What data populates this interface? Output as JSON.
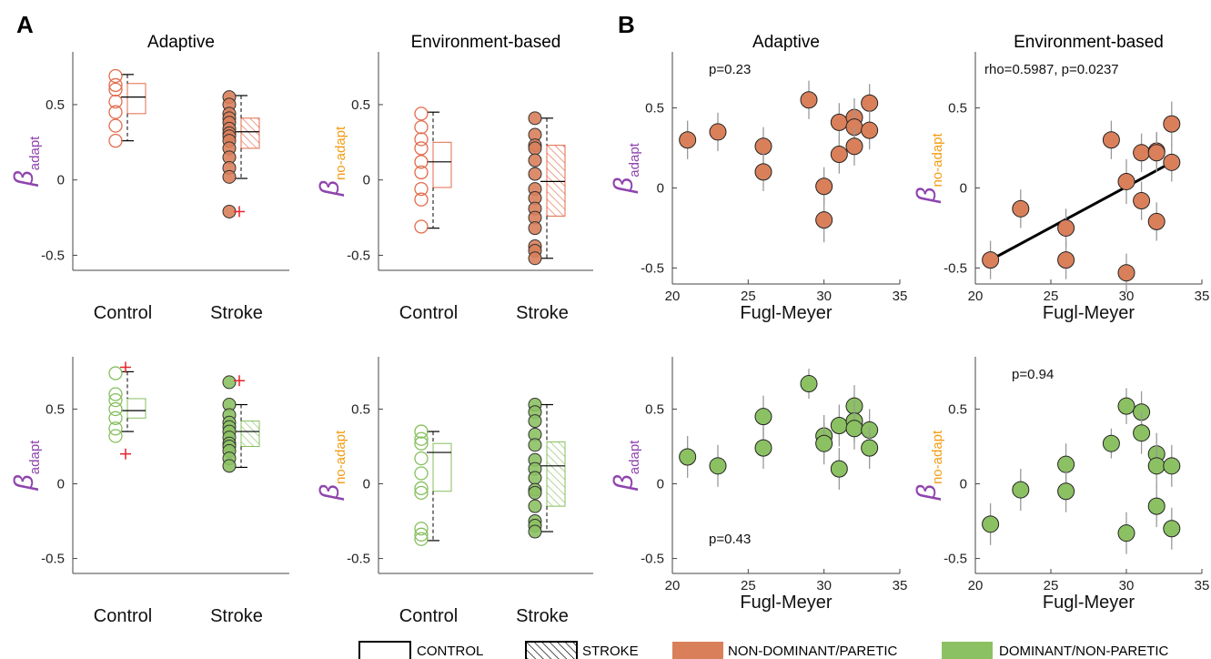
{
  "panel_letters": [
    "A",
    "B"
  ],
  "axis_labels": {
    "control": "Control",
    "stroke": "Stroke",
    "fugl_meyer": "Fugl-Meyer",
    "beta": "β",
    "adapt_sub": "adapt",
    "noadapt_sub": "no-adapt"
  },
  "colors": {
    "paretic_fill": "#D9805B",
    "paretic_stroke": "#E36B4B",
    "nonparetic_fill": "#8CC163",
    "nonparetic_stroke": "#86BF5E",
    "outlier": "#E8232A",
    "purple": "#8E44AD",
    "orange": "#F39C12"
  },
  "legend": [
    {
      "label": "CONTROL",
      "kind": "box"
    },
    {
      "label": "STROKE",
      "kind": "hatch"
    },
    {
      "label": "NON-DOMINANT/PARETIC",
      "kind": "swatch",
      "color": "#D9805B"
    },
    {
      "label": "DOMINANT/NON-PARETIC",
      "kind": "swatch",
      "color": "#8CC163"
    }
  ],
  "chart_data": [
    {
      "type": "box",
      "title": "Adaptive",
      "ylabel_sub": "adapt",
      "color": "paretic",
      "ylim": [
        -0.6,
        0.85
      ],
      "yticks": [
        -0.5,
        0,
        0.5
      ],
      "ytick_labels": [
        "-0.5",
        "0",
        "0.5"
      ],
      "categories": [
        "Control",
        "Stroke"
      ],
      "groups": [
        {
          "name": "Control",
          "points": [
            0.69,
            0.63,
            0.6,
            0.52,
            0.45,
            0.36,
            0.26
          ],
          "median": 0.55,
          "q1": 0.44,
          "q3": 0.64,
          "whisker_low": 0.26,
          "whisker_high": 0.7,
          "outliers": []
        },
        {
          "name": "Stroke",
          "points": [
            0.55,
            0.5,
            0.44,
            0.41,
            0.38,
            0.34,
            0.31,
            0.29,
            0.26,
            0.21,
            0.15,
            0.08,
            0.02,
            -0.21
          ],
          "median": 0.32,
          "q1": 0.21,
          "q3": 0.41,
          "whisker_low": 0.01,
          "whisker_high": 0.56,
          "outliers": [
            -0.21
          ]
        }
      ]
    },
    {
      "type": "box",
      "title": "Environment-based",
      "ylabel_sub": "no-adapt",
      "color": "paretic",
      "ylim": [
        -0.6,
        0.85
      ],
      "yticks": [
        -0.5,
        0,
        0.5
      ],
      "ytick_labels": [
        "-0.5",
        "0",
        "0.5"
      ],
      "categories": [
        "Control",
        "Stroke"
      ],
      "groups": [
        {
          "name": "Control",
          "points": [
            0.44,
            0.35,
            0.27,
            0.21,
            0.12,
            0.05,
            -0.06,
            -0.13,
            -0.31
          ],
          "median": 0.12,
          "q1": -0.05,
          "q3": 0.25,
          "whisker_low": -0.32,
          "whisker_high": 0.45,
          "outliers": []
        },
        {
          "name": "Stroke",
          "points": [
            0.41,
            0.3,
            0.23,
            0.21,
            0.13,
            0.04,
            -0.06,
            -0.12,
            -0.19,
            -0.25,
            -0.32,
            -0.44,
            -0.47,
            -0.52
          ],
          "median": -0.01,
          "q1": -0.24,
          "q3": 0.23,
          "whisker_low": -0.52,
          "whisker_high": 0.41,
          "outliers": []
        }
      ]
    },
    {
      "type": "box",
      "title": "",
      "ylabel_sub": "adapt",
      "color": "nonparetic",
      "ylim": [
        -0.6,
        0.85
      ],
      "yticks": [
        -0.5,
        0,
        0.5
      ],
      "ytick_labels": [
        "-0.5",
        "0",
        "0.5"
      ],
      "categories": [
        "Control",
        "Stroke"
      ],
      "groups": [
        {
          "name": "Control",
          "points": [
            0.74,
            0.6,
            0.56,
            0.5,
            0.44,
            0.37,
            0.32
          ],
          "median": 0.49,
          "q1": 0.44,
          "q3": 0.57,
          "whisker_low": 0.35,
          "whisker_high": 0.75,
          "outliers": [
            0.78,
            0.2
          ]
        },
        {
          "name": "Stroke",
          "points": [
            0.68,
            0.53,
            0.46,
            0.41,
            0.38,
            0.35,
            0.31,
            0.27,
            0.25,
            0.22,
            0.17,
            0.12
          ],
          "median": 0.35,
          "q1": 0.25,
          "q3": 0.42,
          "whisker_low": 0.11,
          "whisker_high": 0.53,
          "outliers": [
            0.69
          ]
        }
      ]
    },
    {
      "type": "box",
      "title": "",
      "ylabel_sub": "no-adapt",
      "color": "nonparetic",
      "ylim": [
        -0.6,
        0.85
      ],
      "yticks": [
        -0.5,
        0,
        0.5
      ],
      "ytick_labels": [
        "-0.5",
        "0",
        "0.5"
      ],
      "categories": [
        "Control",
        "Stroke"
      ],
      "groups": [
        {
          "name": "Control",
          "points": [
            0.35,
            0.3,
            0.27,
            0.17,
            0.07,
            -0.03,
            -0.06,
            -0.3,
            -0.34,
            -0.37
          ],
          "median": 0.21,
          "q1": -0.05,
          "q3": 0.27,
          "whisker_low": -0.38,
          "whisker_high": 0.35,
          "outliers": []
        },
        {
          "name": "Stroke",
          "points": [
            0.53,
            0.48,
            0.42,
            0.33,
            0.26,
            0.16,
            0.1,
            0.04,
            -0.04,
            -0.06,
            -0.15,
            -0.25,
            -0.28,
            -0.32
          ],
          "median": 0.12,
          "q1": -0.15,
          "q3": 0.28,
          "whisker_low": -0.32,
          "whisker_high": 0.53,
          "outliers": []
        }
      ]
    },
    {
      "type": "scatter",
      "title": "Adaptive",
      "xlabel": "Fugl-Meyer",
      "ylabel_sub": "adapt",
      "color": "paretic",
      "annotation": "p=0.23",
      "xlim": [
        20,
        35
      ],
      "ylim": [
        -0.6,
        0.85
      ],
      "xticks": [
        20,
        25,
        30,
        35
      ],
      "yticks": [
        -0.5,
        0,
        0.5
      ],
      "ytick_labels": [
        "-0.5",
        "0",
        "0.5"
      ],
      "points": [
        {
          "x": 21,
          "y": 0.3,
          "err": 0.12
        },
        {
          "x": 23,
          "y": 0.35,
          "err": 0.12
        },
        {
          "x": 26,
          "y": 0.26,
          "err": 0.12
        },
        {
          "x": 26,
          "y": 0.1,
          "err": 0.12
        },
        {
          "x": 29,
          "y": 0.55,
          "err": 0.12
        },
        {
          "x": 30,
          "y": 0.01,
          "err": 0.12
        },
        {
          "x": 30,
          "y": -0.2,
          "err": 0.14
        },
        {
          "x": 31,
          "y": 0.41,
          "err": 0.12
        },
        {
          "x": 31,
          "y": 0.21,
          "err": 0.12
        },
        {
          "x": 32,
          "y": 0.44,
          "err": 0.12
        },
        {
          "x": 32,
          "y": 0.38,
          "err": 0.12
        },
        {
          "x": 32,
          "y": 0.26,
          "err": 0.12
        },
        {
          "x": 33,
          "y": 0.53,
          "err": 0.12
        },
        {
          "x": 33,
          "y": 0.36,
          "err": 0.12
        }
      ]
    },
    {
      "type": "scatter",
      "title": "Environment-based",
      "xlabel": "Fugl-Meyer",
      "ylabel_sub": "no-adapt",
      "color": "paretic",
      "annotation": "rho=0.5987, p=0.0237",
      "xlim": [
        20,
        35
      ],
      "ylim": [
        -0.6,
        0.85
      ],
      "xticks": [
        20,
        25,
        30,
        35
      ],
      "yticks": [
        -0.5,
        0,
        0.5
      ],
      "ytick_labels": [
        "-0.5",
        "0",
        "0.5"
      ],
      "fit": {
        "x1": 21,
        "y1": -0.45,
        "x2": 33,
        "y2": 0.16
      },
      "points": [
        {
          "x": 21,
          "y": -0.45,
          "err": 0.12
        },
        {
          "x": 23,
          "y": -0.13,
          "err": 0.12
        },
        {
          "x": 26,
          "y": -0.25,
          "err": 0.12
        },
        {
          "x": 26,
          "y": -0.45,
          "err": 0.12
        },
        {
          "x": 29,
          "y": 0.3,
          "err": 0.12
        },
        {
          "x": 30,
          "y": 0.04,
          "err": 0.14
        },
        {
          "x": 30,
          "y": -0.53,
          "err": 0.12
        },
        {
          "x": 31,
          "y": 0.22,
          "err": 0.12
        },
        {
          "x": 31,
          "y": -0.08,
          "err": 0.12
        },
        {
          "x": 32,
          "y": 0.23,
          "err": 0.12
        },
        {
          "x": 32,
          "y": 0.22,
          "err": 0.12
        },
        {
          "x": 32,
          "y": -0.21,
          "err": 0.12
        },
        {
          "x": 33,
          "y": 0.4,
          "err": 0.14
        },
        {
          "x": 33,
          "y": 0.16,
          "err": 0.12
        }
      ]
    },
    {
      "type": "scatter",
      "title": "",
      "xlabel": "Fugl-Meyer",
      "ylabel_sub": "adapt",
      "color": "nonparetic",
      "annotation": "p=0.43",
      "xlim": [
        20,
        35
      ],
      "ylim": [
        -0.6,
        0.85
      ],
      "xticks": [
        20,
        25,
        30,
        35
      ],
      "yticks": [
        -0.5,
        0,
        0.5
      ],
      "ytick_labels": [
        "-0.5",
        "0",
        "0.5"
      ],
      "points": [
        {
          "x": 21,
          "y": 0.18,
          "err": 0.14
        },
        {
          "x": 23,
          "y": 0.12,
          "err": 0.14
        },
        {
          "x": 26,
          "y": 0.45,
          "err": 0.14
        },
        {
          "x": 26,
          "y": 0.24,
          "err": 0.14
        },
        {
          "x": 29,
          "y": 0.67,
          "err": 0.1
        },
        {
          "x": 30,
          "y": 0.32,
          "err": 0.14
        },
        {
          "x": 30,
          "y": 0.27,
          "err": 0.14
        },
        {
          "x": 31,
          "y": 0.39,
          "err": 0.14
        },
        {
          "x": 31,
          "y": 0.1,
          "err": 0.14
        },
        {
          "x": 32,
          "y": 0.52,
          "err": 0.14
        },
        {
          "x": 32,
          "y": 0.42,
          "err": 0.14
        },
        {
          "x": 32,
          "y": 0.37,
          "err": 0.14
        },
        {
          "x": 33,
          "y": 0.36,
          "err": 0.14
        },
        {
          "x": 33,
          "y": 0.24,
          "err": 0.14
        }
      ]
    },
    {
      "type": "scatter",
      "title": "",
      "xlabel": "Fugl-Meyer",
      "ylabel_sub": "no-adapt",
      "color": "nonparetic",
      "annotation": "p=0.94",
      "xlim": [
        20,
        35
      ],
      "ylim": [
        -0.6,
        0.85
      ],
      "xticks": [
        20,
        25,
        30,
        35
      ],
      "yticks": [
        -0.5,
        0,
        0.5
      ],
      "ytick_labels": [
        "-0.5",
        "0",
        "0.5"
      ],
      "points": [
        {
          "x": 21,
          "y": -0.27,
          "err": 0.14
        },
        {
          "x": 23,
          "y": -0.04,
          "err": 0.14
        },
        {
          "x": 26,
          "y": 0.13,
          "err": 0.14
        },
        {
          "x": 26,
          "y": -0.05,
          "err": 0.14
        },
        {
          "x": 29,
          "y": 0.27,
          "err": 0.1
        },
        {
          "x": 30,
          "y": 0.52,
          "err": 0.12
        },
        {
          "x": 30,
          "y": -0.33,
          "err": 0.14
        },
        {
          "x": 31,
          "y": 0.48,
          "err": 0.14
        },
        {
          "x": 31,
          "y": 0.34,
          "err": 0.14
        },
        {
          "x": 32,
          "y": 0.2,
          "err": 0.14
        },
        {
          "x": 32,
          "y": 0.12,
          "err": 0.14
        },
        {
          "x": 32,
          "y": -0.15,
          "err": 0.14
        },
        {
          "x": 33,
          "y": 0.12,
          "err": 0.14
        },
        {
          "x": 33,
          "y": -0.3,
          "err": 0.14
        }
      ]
    }
  ]
}
